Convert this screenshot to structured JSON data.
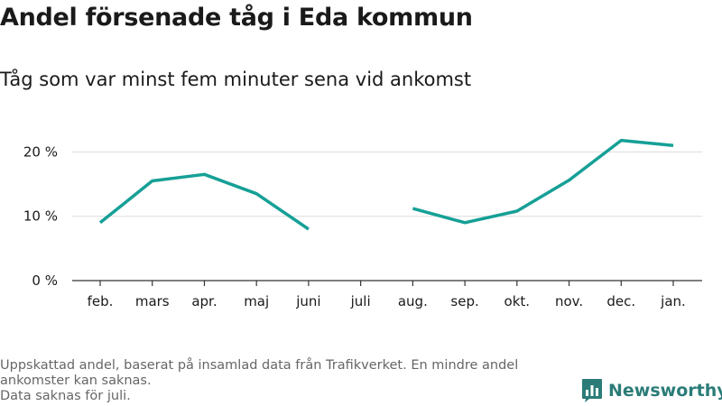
{
  "chart_data": {
    "type": "line",
    "title": "Andel försenade tåg i Eda kommun",
    "subtitle": "Tåg som var minst fem minuter sena vid ankomst",
    "categories": [
      "feb.",
      "mars",
      "apr.",
      "maj",
      "juni",
      "juli",
      "aug.",
      "sep.",
      "okt.",
      "nov.",
      "dec.",
      "jan."
    ],
    "series": [
      {
        "values": [
          9.0,
          15.5,
          16.5,
          13.5,
          8.0,
          null,
          11.2,
          9.0,
          10.8,
          15.6,
          21.8,
          21.0
        ]
      }
    ],
    "y_ticks": [
      {
        "value": 0,
        "label": "0 %"
      },
      {
        "value": 10,
        "label": "10 %"
      },
      {
        "value": 20,
        "label": "20 %"
      }
    ],
    "ylim": [
      0,
      23
    ],
    "grid": true,
    "line_color": "#16a096"
  },
  "footnote": {
    "line1": "Uppskattad andel, baserat på insamlad data från Trafikverket. En mindre andel ankomster kan saknas.",
    "line2": "Data saknas för juli."
  },
  "brand": {
    "name": "Newsworthy",
    "icon": "bar-chart-logo-icon",
    "color": "#2b7c78"
  }
}
